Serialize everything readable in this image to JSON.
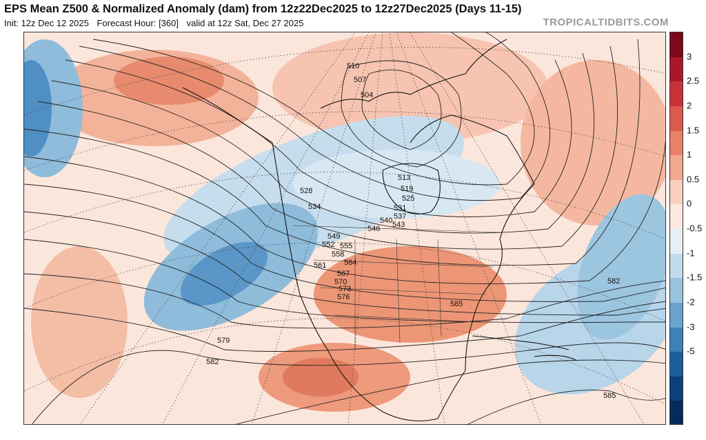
{
  "header": {
    "title": "EPS Mean Z500 & Normalized Anomaly (dam) from 12z22Dec2025 to 12z27Dec2025 (Days 11-15)",
    "init": "Init: 12z Dec 12 2025",
    "forecast_hour": "Forecast Hour: [360]",
    "valid": "valid at 12z Sat, Dec 27 2025",
    "brand": "TROPICALTIDBITS.COM"
  },
  "colorbar": {
    "labels": [
      "3",
      "2.5",
      "2",
      "1.5",
      "1",
      "0.5",
      "0",
      "-0.5",
      "-1",
      "-1.5",
      "-2",
      "-3",
      "-5"
    ],
    "colors": [
      "#7a0a1a",
      "#a8182a",
      "#c8323a",
      "#dc5a4e",
      "#e8806a",
      "#f2a88e",
      "#f8cfbc",
      "#fbe9df",
      "#e6f0f6",
      "#c3dceb",
      "#98c3dd",
      "#6aa3cc",
      "#3e80b8",
      "#1d5c9c",
      "#0e3f7a",
      "#062a5a"
    ]
  },
  "contours": {
    "labels": [
      "510",
      "507",
      "504",
      "513",
      "519",
      "525",
      "528",
      "531",
      "534",
      "537",
      "540",
      "543",
      "546",
      "549",
      "552",
      "555",
      "558",
      "561",
      "564",
      "567",
      "570",
      "573",
      "576",
      "579",
      "582",
      "585",
      "582",
      "585"
    ]
  }
}
